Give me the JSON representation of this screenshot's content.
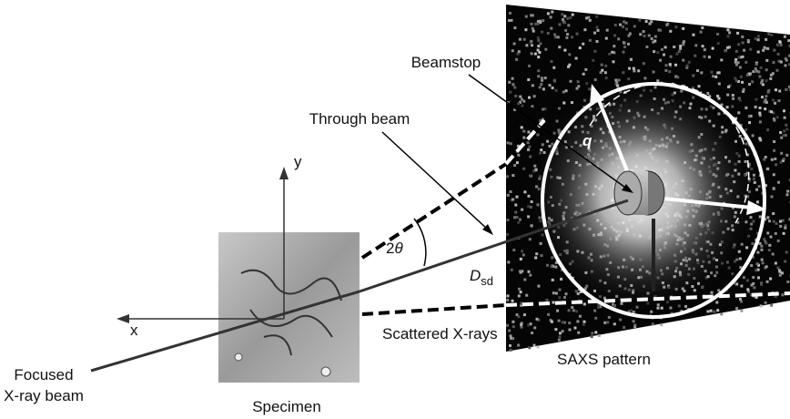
{
  "labels": {
    "beamstop": "Beamstop",
    "through_beam": "Through beam",
    "q": "q",
    "y_axis": "y",
    "x_axis": "x",
    "angle": {
      "number": "2",
      "symbol": "θ"
    },
    "distance": {
      "main": "D",
      "subscript": "sd"
    },
    "scattered": "Scattered X-rays",
    "saxs": "SAXS pattern",
    "focused": [
      "Focused",
      "X-ray beam"
    ],
    "specimen": "Specimen"
  }
}
